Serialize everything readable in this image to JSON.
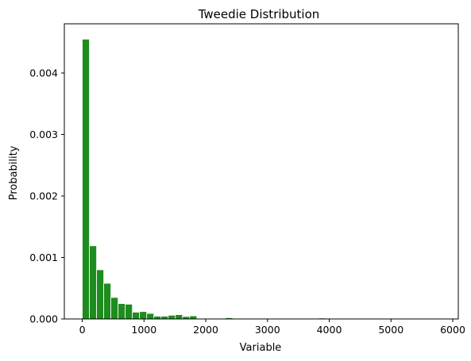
{
  "chart_data": {
    "type": "bar",
    "title": "Tweedie Distribution",
    "xlabel": "Variable",
    "ylabel": "Probability",
    "xlim": [
      -290,
      6090
    ],
    "ylim": [
      0,
      0.0048
    ],
    "xticks": [
      0,
      1000,
      2000,
      3000,
      4000,
      5000,
      6000
    ],
    "yticks": [
      0.0,
      0.001,
      0.002,
      0.003,
      0.004
    ],
    "ytick_labels": [
      "0.000",
      "0.001",
      "0.002",
      "0.003",
      "0.004"
    ],
    "bar_color": "#1e8c1e",
    "edge_color": "#ffffff",
    "bin_width": 116,
    "bins_start": [
      0,
      116,
      232,
      348,
      464,
      580,
      696,
      812,
      928,
      1044,
      1160,
      1276,
      1392,
      1508,
      1624,
      1740,
      1856,
      1972,
      2088,
      2204,
      2320,
      2436,
      2552,
      2668,
      2784,
      2900,
      3016,
      3132,
      3248,
      3364,
      3480,
      3596,
      3712,
      3828,
      3944,
      4060,
      4176,
      4292,
      4408,
      4524,
      4640,
      4756,
      4872,
      4988,
      5104,
      5220,
      5336,
      5452,
      5568,
      5684
    ],
    "values": [
      0.00455,
      0.00119,
      0.0008,
      0.00058,
      0.00035,
      0.00025,
      0.00024,
      0.00011,
      0.00012,
      9e-05,
      4.5e-05,
      4.5e-05,
      6e-05,
      7e-05,
      4e-05,
      5e-05,
      1e-05,
      0.0,
      1e-05,
      0.0,
      2e-05,
      0.0,
      0.0,
      0.0,
      8e-06,
      0.0,
      8e-06,
      0.0,
      0.0,
      8e-06,
      0.0,
      0.0,
      0.0,
      1.5e-05,
      0.0,
      0.0,
      0.0,
      0.0,
      0.0,
      0.0,
      0.0,
      0.0,
      0.0,
      0.0,
      0.0,
      0.0,
      0.0,
      0.0,
      0.0,
      8e-06
    ]
  }
}
